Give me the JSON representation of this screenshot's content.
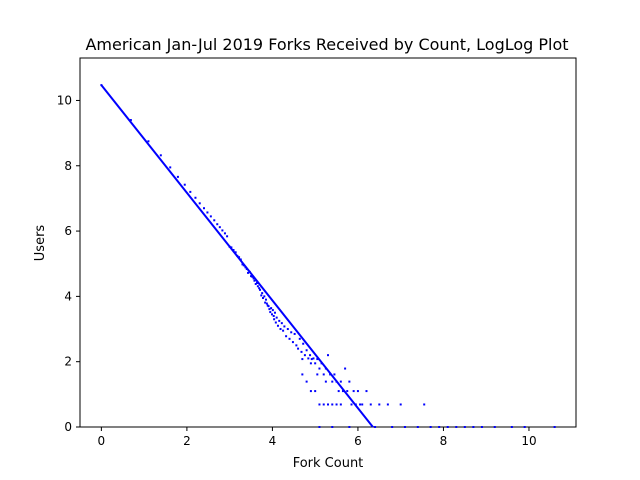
{
  "chart_data": {
    "type": "scatter",
    "title": "American Jan-Jul 2019 Forks Received by Count, LogLog Plot",
    "xlabel": "Fork Count",
    "ylabel": "Users",
    "xlim": [
      -0.5,
      11.1
    ],
    "ylim": [
      0,
      11.3
    ],
    "xticks": [
      0,
      2,
      4,
      6,
      8,
      10
    ],
    "yticks": [
      0,
      2,
      4,
      6,
      8,
      10
    ],
    "xtick_labels": [
      "0",
      "2",
      "4",
      "6",
      "8",
      "10"
    ],
    "ytick_labels": [
      "0",
      "2",
      "4",
      "6",
      "8",
      "10"
    ],
    "grid": false,
    "legend": "none",
    "color": "#0000ff",
    "fit_line": {
      "x": [
        0,
        6.35
      ],
      "y": [
        10.47,
        0
      ]
    },
    "series": [
      {
        "points": [
          [
            0.0,
            10.47
          ],
          [
            0.69,
            9.4
          ],
          [
            1.1,
            8.75
          ],
          [
            1.39,
            8.32
          ],
          [
            1.61,
            7.95
          ],
          [
            1.79,
            7.66
          ],
          [
            1.95,
            7.42
          ],
          [
            2.08,
            7.2
          ],
          [
            2.2,
            7.02
          ],
          [
            2.3,
            6.85
          ],
          [
            2.4,
            6.7
          ],
          [
            2.48,
            6.57
          ],
          [
            2.56,
            6.45
          ],
          [
            2.64,
            6.33
          ],
          [
            2.71,
            6.21
          ],
          [
            2.77,
            6.12
          ],
          [
            2.83,
            6.02
          ],
          [
            2.89,
            5.93
          ],
          [
            2.94,
            5.84
          ],
          [
            3.0,
            5.52
          ],
          [
            3.04,
            5.5
          ],
          [
            3.09,
            5.42
          ],
          [
            3.14,
            5.35
          ],
          [
            3.18,
            5.24
          ],
          [
            3.22,
            5.2
          ],
          [
            3.26,
            5.13
          ],
          [
            3.3,
            4.98
          ],
          [
            3.33,
            4.95
          ],
          [
            3.37,
            4.89
          ],
          [
            3.4,
            4.84
          ],
          [
            3.43,
            4.72
          ],
          [
            3.47,
            4.75
          ],
          [
            3.5,
            4.62
          ],
          [
            3.53,
            4.6
          ],
          [
            3.56,
            4.55
          ],
          [
            3.58,
            4.48
          ],
          [
            3.61,
            4.38
          ],
          [
            3.64,
            4.41
          ],
          [
            3.66,
            4.31
          ],
          [
            3.69,
            4.25
          ],
          [
            3.71,
            4.2
          ],
          [
            3.74,
            4.03
          ],
          [
            3.76,
            4.1
          ],
          [
            3.78,
            3.95
          ],
          [
            3.81,
            4.0
          ],
          [
            3.83,
            3.81
          ],
          [
            3.85,
            3.9
          ],
          [
            3.87,
            3.78
          ],
          [
            3.89,
            3.72
          ],
          [
            3.91,
            3.7
          ],
          [
            3.93,
            3.61
          ],
          [
            3.95,
            3.52
          ],
          [
            3.97,
            3.64
          ],
          [
            3.99,
            3.45
          ],
          [
            4.01,
            3.58
          ],
          [
            4.03,
            3.4
          ],
          [
            4.04,
            3.3
          ],
          [
            4.06,
            3.5
          ],
          [
            4.08,
            3.2
          ],
          [
            4.1,
            3.35
          ],
          [
            4.13,
            3.1
          ],
          [
            4.16,
            3.25
          ],
          [
            4.19,
            3.0
          ],
          [
            4.22,
            3.18
          ],
          [
            4.25,
            2.95
          ],
          [
            4.28,
            3.08
          ],
          [
            4.32,
            2.78
          ],
          [
            4.36,
            3.0
          ],
          [
            4.4,
            2.7
          ],
          [
            4.44,
            2.9
          ],
          [
            4.48,
            2.6
          ],
          [
            4.52,
            2.85
          ],
          [
            4.56,
            2.5
          ],
          [
            4.6,
            2.4
          ],
          [
            4.64,
            2.7
          ],
          [
            4.68,
            2.3
          ],
          [
            4.72,
            2.55
          ],
          [
            4.76,
            2.2
          ],
          [
            4.8,
            2.35
          ],
          [
            4.84,
            2.1
          ],
          [
            4.88,
            2.2
          ],
          [
            4.92,
            2.08
          ],
          [
            4.96,
            2.1
          ],
          [
            5.0,
            1.95
          ],
          [
            5.05,
            2.08
          ],
          [
            5.1,
            1.79
          ],
          [
            5.15,
            1.95
          ],
          [
            5.2,
            1.61
          ],
          [
            5.25,
            1.79
          ],
          [
            5.3,
            2.2
          ],
          [
            5.35,
            1.61
          ],
          [
            5.4,
            1.39
          ],
          [
            5.45,
            1.61
          ],
          [
            5.5,
            1.39
          ],
          [
            5.55,
            1.1
          ],
          [
            5.6,
            1.39
          ],
          [
            5.65,
            1.1
          ],
          [
            5.7,
            1.79
          ],
          [
            5.75,
            1.1
          ],
          [
            5.8,
            1.39
          ],
          [
            5.85,
            0.69
          ],
          [
            5.9,
            1.1
          ],
          [
            5.95,
            0.69
          ],
          [
            6.0,
            1.1
          ],
          [
            6.05,
            0.69
          ],
          [
            6.1,
            0.69
          ],
          [
            6.2,
            1.1
          ],
          [
            6.3,
            0.69
          ],
          [
            4.7,
            1.61
          ],
          [
            4.8,
            1.39
          ],
          [
            4.9,
            1.1
          ],
          [
            5.0,
            1.1
          ],
          [
            5.1,
            0.69
          ],
          [
            5.2,
            0.69
          ],
          [
            5.3,
            0.69
          ],
          [
            5.4,
            0.69
          ],
          [
            5.5,
            0.69
          ],
          [
            5.6,
            0.69
          ],
          [
            6.5,
            0.69
          ],
          [
            6.7,
            0.69
          ],
          [
            7.0,
            0.69
          ],
          [
            7.55,
            0.69
          ],
          [
            4.7,
            2.08
          ],
          [
            4.9,
            1.95
          ],
          [
            5.05,
            1.61
          ],
          [
            5.25,
            1.39
          ],
          [
            5.1,
            0.0
          ],
          [
            5.4,
            0.0
          ],
          [
            5.8,
            0.0
          ],
          [
            6.4,
            0.0
          ],
          [
            6.8,
            0.0
          ],
          [
            7.1,
            0.0
          ],
          [
            7.4,
            0.0
          ],
          [
            7.7,
            0.0
          ],
          [
            7.9,
            0.0
          ],
          [
            8.1,
            0.0
          ],
          [
            8.3,
            0.0
          ],
          [
            8.5,
            0.0
          ],
          [
            8.7,
            0.0
          ],
          [
            8.9,
            0.0
          ],
          [
            9.2,
            0.0
          ],
          [
            9.6,
            0.0
          ],
          [
            9.9,
            0.0
          ],
          [
            10.6,
            0.0
          ]
        ]
      }
    ]
  }
}
